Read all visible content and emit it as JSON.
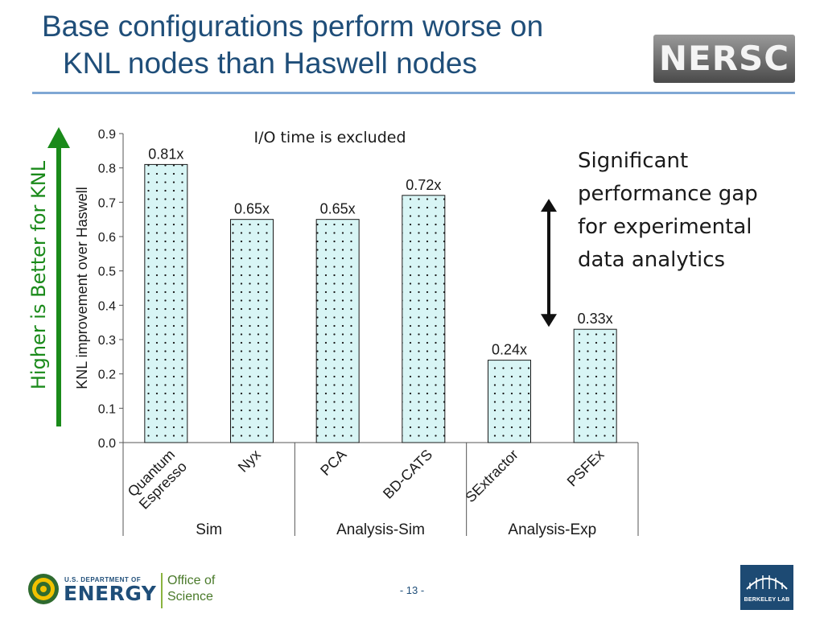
{
  "slide": {
    "title_lines": [
      "Base configurations perform worse on",
      "KNL nodes than Haswell nodes"
    ],
    "nersc_logo_text": "NERSC",
    "higher_label": "Higher is Better for KNL",
    "side_note_lines": [
      "Significant",
      "performance gap",
      "for experimental",
      "data analytics"
    ],
    "page_number": "- 13 -"
  },
  "footer": {
    "doe_small": "U.S. DEPARTMENT OF",
    "doe_big": "ENERGY",
    "office_lines": [
      "Office of",
      "Science"
    ],
    "berkeley_lab": "BERKELEY LAB"
  },
  "colors": {
    "title": "#1f4e79",
    "bar_fill": "#d8f5f5",
    "bar_dots": "#1a1a1a",
    "green_arrow": "#1a8a1a",
    "divider": "#7fa7d4"
  },
  "icons": {
    "higher_arrow": "up-arrow-icon",
    "gap_arrow": "double-arrow-icon",
    "doe_seal": "doe-seal-icon",
    "berkeley_logo": "berkeley-lab-logo-icon"
  },
  "chart_data": {
    "type": "bar",
    "annotation": "I/O time is excluded",
    "ylabel": "KNL improvement over Haswell",
    "ylim": [
      0,
      0.9
    ],
    "yticks": [
      "0.0",
      "0.1",
      "0.2",
      "0.3",
      "0.4",
      "0.5",
      "0.6",
      "0.7",
      "0.8",
      "0.9"
    ],
    "categories": [
      "Quantum Espresso",
      "Nyx",
      "PCA",
      "BD-CATS",
      "SExtractor",
      "PSFEx"
    ],
    "category_label_lines": [
      [
        "Quantum",
        "Espresso"
      ],
      [
        "Nyx"
      ],
      [
        "PCA"
      ],
      [
        "BD-CATS"
      ],
      [
        "SExtractor"
      ],
      [
        "PSFEx"
      ]
    ],
    "values": [
      0.81,
      0.65,
      0.65,
      0.72,
      0.24,
      0.33
    ],
    "value_labels": [
      "0.81x",
      "0.65x",
      "0.65x",
      "0.72x",
      "0.24x",
      "0.33x"
    ],
    "groups": [
      {
        "name": "Sim",
        "categories": [
          "Quantum Espresso",
          "Nyx"
        ]
      },
      {
        "name": "Analysis-Sim",
        "categories": [
          "PCA",
          "BD-CATS"
        ]
      },
      {
        "name": "Analysis-Exp",
        "categories": [
          "SExtractor",
          "PSFEx"
        ]
      }
    ],
    "grid": false,
    "legend": "none"
  }
}
